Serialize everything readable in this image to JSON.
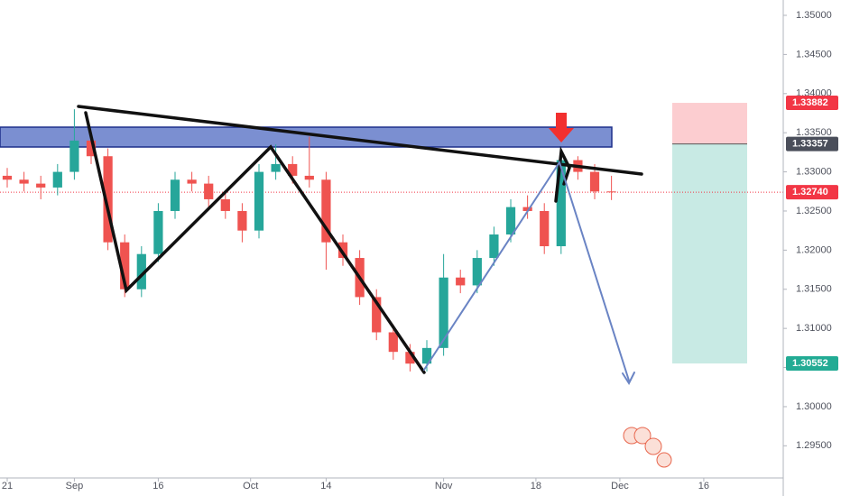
{
  "chart_data": {
    "type": "candlestick",
    "x": [
      0,
      2,
      4,
      6,
      8,
      10,
      12,
      14,
      16,
      18,
      20,
      22,
      24,
      26,
      28,
      30,
      32,
      34,
      36,
      38,
      40,
      42,
      44,
      46,
      48,
      50,
      52,
      54,
      56,
      58,
      60,
      62,
      64,
      66,
      68,
      70,
      72
    ],
    "open": [
      1.3295,
      1.329,
      1.3285,
      1.328,
      1.33,
      1.334,
      1.332,
      1.321,
      1.315,
      1.3195,
      1.325,
      1.329,
      1.3285,
      1.3265,
      1.325,
      1.3225,
      1.33,
      1.331,
      1.3295,
      1.329,
      1.321,
      1.319,
      1.314,
      1.3095,
      1.307,
      1.3055,
      1.3075,
      1.3165,
      1.3155,
      1.319,
      1.322,
      1.3255,
      1.325,
      1.3205,
      1.3315,
      1.33,
      1.3275
    ],
    "high": [
      1.3305,
      1.33,
      1.3295,
      1.331,
      1.338,
      1.335,
      1.333,
      1.322,
      1.3205,
      1.326,
      1.33,
      1.33,
      1.3295,
      1.3275,
      1.326,
      1.331,
      1.3335,
      1.332,
      1.3345,
      1.33,
      1.322,
      1.32,
      1.315,
      1.3105,
      1.308,
      1.3085,
      1.3195,
      1.3175,
      1.32,
      1.323,
      1.3265,
      1.327,
      1.326,
      1.3325,
      1.332,
      1.331,
      1.3295
    ],
    "low": [
      1.328,
      1.3275,
      1.3265,
      1.327,
      1.329,
      1.331,
      1.32,
      1.314,
      1.314,
      1.3185,
      1.324,
      1.3275,
      1.3255,
      1.324,
      1.321,
      1.3215,
      1.329,
      1.3285,
      1.328,
      1.3175,
      1.318,
      1.313,
      1.3085,
      1.306,
      1.3045,
      1.3045,
      1.3065,
      1.3145,
      1.3145,
      1.318,
      1.321,
      1.324,
      1.3195,
      1.3195,
      1.329,
      1.3265,
      1.3264
    ],
    "close": [
      1.329,
      1.3285,
      1.328,
      1.33,
      1.334,
      1.332,
      1.321,
      1.315,
      1.3195,
      1.325,
      1.329,
      1.3285,
      1.3265,
      1.325,
      1.3225,
      1.33,
      1.331,
      1.3295,
      1.329,
      1.321,
      1.319,
      1.314,
      1.3095,
      1.307,
      1.3055,
      1.3075,
      1.3165,
      1.3155,
      1.319,
      1.322,
      1.3255,
      1.325,
      1.3205,
      1.3315,
      1.33,
      1.3275,
      1.3274
    ],
    "up_color": "#26a69a",
    "down_color": "#ef5350",
    "xlim": [
      -0.86,
      92.47
    ],
    "xticks": [
      {
        "value": 0,
        "label": "21"
      },
      {
        "value": 8,
        "label": "Sep"
      },
      {
        "value": 18,
        "label": "16"
      },
      {
        "value": 29,
        "label": "Oct"
      },
      {
        "value": 38,
        "label": "14"
      },
      {
        "value": 52,
        "label": "Nov"
      },
      {
        "value": 63,
        "label": "18"
      },
      {
        "value": 73,
        "label": "Dec"
      },
      {
        "value": 83,
        "label": "16"
      }
    ],
    "ylim": [
      1.29089,
      1.35196
    ],
    "yticks": [
      {
        "value": 1.295,
        "label": "1.29500"
      },
      {
        "value": 1.3,
        "label": "1.30000"
      },
      {
        "value": 1.305,
        "label": "1.30500"
      },
      {
        "value": 1.31,
        "label": "1.31000"
      },
      {
        "value": 1.315,
        "label": "1.31500"
      },
      {
        "value": 1.32,
        "label": "1.32000"
      },
      {
        "value": 1.325,
        "label": "1.32500"
      },
      {
        "value": 1.33,
        "label": "1.33000"
      },
      {
        "value": 1.335,
        "label": "1.33500"
      },
      {
        "value": 1.34,
        "label": "1.34000"
      },
      {
        "value": 1.345,
        "label": "1.34500"
      },
      {
        "value": 1.35,
        "label": "1.35000"
      }
    ],
    "grid": false,
    "price_levels": [
      {
        "value": 1.33882,
        "color": "#f23645"
      },
      {
        "value": 1.33357,
        "color": "#4a4e5a"
      },
      {
        "value": 1.3274,
        "label": "1.32740",
        "color": "#f23645"
      },
      {
        "value": 1.30552,
        "color": "#22ab94"
      }
    ]
  }
}
